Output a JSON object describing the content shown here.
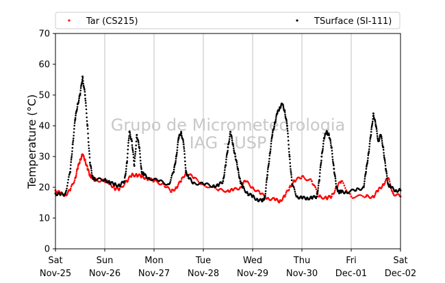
{
  "chart_data": {
    "type": "scatter",
    "title": "",
    "ylabel": "Temperature (°C)",
    "xlabel": "",
    "ylim": [
      0,
      70
    ],
    "yticks": [
      0,
      10,
      20,
      30,
      40,
      50,
      60,
      70
    ],
    "xlim_days": [
      0,
      7
    ],
    "xticks": [
      {
        "day": "Sat",
        "date": "Nov-25"
      },
      {
        "day": "Sun",
        "date": "Nov-26"
      },
      {
        "day": "Mon",
        "date": "Nov-27"
      },
      {
        "day": "Tue",
        "date": "Nov-28"
      },
      {
        "day": "Wed",
        "date": "Nov-29"
      },
      {
        "day": "Thu",
        "date": "Nov-30"
      },
      {
        "day": "Fri",
        "date": "Dec-01"
      },
      {
        "day": "Sat",
        "date": "Dec-02"
      }
    ],
    "grid": "vertical",
    "legend_position": "top",
    "watermark": [
      "Grupo de Micrometeorologia",
      "IAG - USP"
    ],
    "series": [
      {
        "name": "Tar (CS215)",
        "color": "#ff0000",
        "x": [
          0.0,
          0.1,
          0.2,
          0.3,
          0.4,
          0.45,
          0.5,
          0.55,
          0.6,
          0.65,
          0.7,
          0.75,
          0.8,
          1.0,
          1.1,
          1.2,
          1.3,
          1.45,
          1.55,
          1.65,
          1.75,
          1.85,
          2.0,
          2.2,
          2.35,
          2.45,
          2.55,
          2.65,
          2.8,
          3.0,
          3.3,
          3.5,
          3.6,
          3.75,
          3.85,
          4.0,
          4.15,
          4.3,
          4.45,
          4.55,
          4.65,
          4.75,
          4.85,
          5.0,
          5.2,
          5.35,
          5.5,
          5.6,
          5.7,
          5.8,
          6.0,
          6.3,
          6.45,
          6.55,
          6.65,
          6.75,
          6.85,
          7.0
        ],
        "y": [
          19,
          18,
          17.5,
          19,
          23,
          26,
          29,
          30.5,
          29,
          26,
          24,
          23,
          22.5,
          22,
          21.5,
          19.5,
          19.5,
          22,
          24,
          24,
          23.5,
          23,
          22,
          21,
          18.5,
          20,
          22,
          25,
          23,
          21,
          19,
          19,
          19,
          20,
          22,
          20,
          18,
          16.5,
          16,
          15.5,
          17,
          20,
          22,
          23.5,
          22,
          17,
          16.5,
          17,
          20,
          22,
          17,
          17,
          17,
          19,
          21,
          23,
          18,
          17
        ]
      },
      {
        "name": "TSurface (SI-111)",
        "color": "#000000",
        "x": [
          0.0,
          0.1,
          0.2,
          0.3,
          0.35,
          0.4,
          0.45,
          0.5,
          0.55,
          0.6,
          0.65,
          0.7,
          0.75,
          0.8,
          1.0,
          1.1,
          1.2,
          1.3,
          1.4,
          1.45,
          1.5,
          1.55,
          1.6,
          1.65,
          1.7,
          1.75,
          1.8,
          1.9,
          2.1,
          2.3,
          2.4,
          2.45,
          2.5,
          2.55,
          2.6,
          2.65,
          2.7,
          2.8,
          3.0,
          3.2,
          3.3,
          3.4,
          3.45,
          3.5,
          3.55,
          3.6,
          3.65,
          3.7,
          3.75,
          3.8,
          3.9,
          4.0,
          4.1,
          4.2,
          4.25,
          4.3,
          4.35,
          4.4,
          4.45,
          4.5,
          4.55,
          4.6,
          4.65,
          4.7,
          4.75,
          4.8,
          4.9,
          5.0,
          5.1,
          5.2,
          5.3,
          5.35,
          5.4,
          5.45,
          5.5,
          5.55,
          5.6,
          5.65,
          5.7,
          5.75,
          5.8,
          5.9,
          6.1,
          6.25,
          6.3,
          6.35,
          6.4,
          6.45,
          6.5,
          6.55,
          6.6,
          6.65,
          6.7,
          6.75,
          6.8,
          6.9,
          7.0
        ],
        "y": [
          18,
          17.5,
          18,
          25,
          34,
          42,
          47,
          50,
          56,
          50,
          40,
          28,
          23.5,
          22.5,
          22.5,
          21.5,
          21,
          20.5,
          22,
          28,
          38,
          35,
          27,
          37,
          33,
          25,
          24,
          23,
          22,
          21,
          25,
          30,
          36,
          38,
          34,
          25,
          23,
          21.5,
          21,
          20.5,
          20.5,
          22,
          27,
          33,
          38,
          34,
          30,
          26,
          22,
          20,
          18,
          17,
          16,
          15.5,
          17,
          24,
          31,
          37,
          41,
          44,
          46,
          47,
          45,
          40,
          30,
          21,
          17,
          16.5,
          16.5,
          16.5,
          17,
          22,
          30,
          36,
          38,
          37,
          33,
          26,
          20,
          18.5,
          18.5,
          18.5,
          19,
          20,
          25,
          31,
          37,
          44,
          40,
          35,
          37,
          33,
          26,
          21,
          20,
          19,
          19
        ]
      }
    ]
  }
}
